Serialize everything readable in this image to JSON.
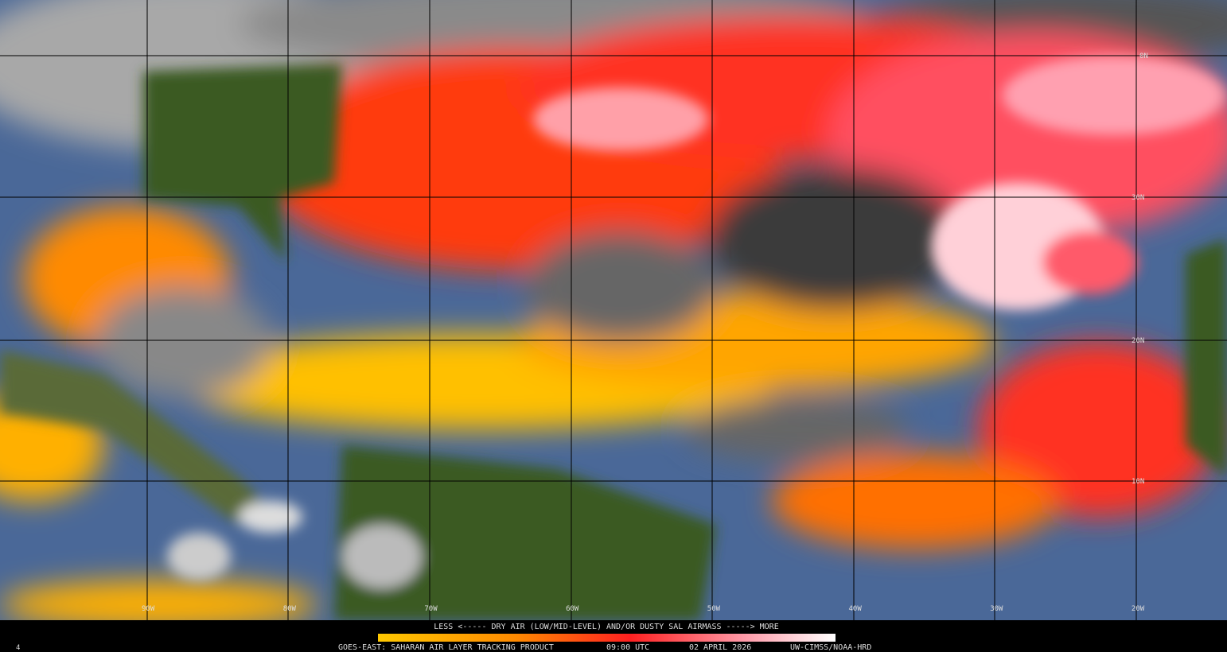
{
  "map": {
    "lat_labels": [
      "0N",
      "30N",
      "20N",
      "10N"
    ],
    "lon_labels": [
      "90W",
      "80W",
      "70W",
      "60W",
      "50W",
      "40W",
      "30W",
      "20W"
    ]
  },
  "footer": {
    "legend": "LESS <----- DRY AIR (LOW/MID-LEVEL) AND/OR DUSTY SAL AIRMASS -----> MORE",
    "product": "GOES-EAST: SAHARAN AIR LAYER TRACKING PRODUCT",
    "time": "09:00 UTC",
    "date": "02 APRIL 2026",
    "credit": "UW-CIMSS/NOAA-HRD",
    "corner": "4"
  }
}
